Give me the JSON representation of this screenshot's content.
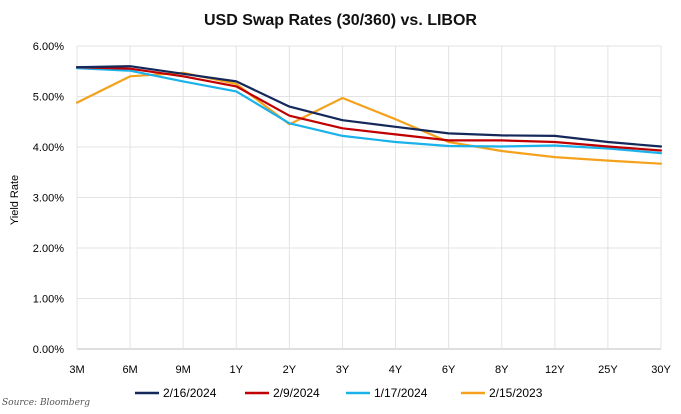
{
  "chart_data": {
    "type": "line",
    "title": "USD Swap Rates (30/360) vs. LIBOR",
    "xlabel": "",
    "ylabel": "Yield Rate",
    "categories": [
      "3M",
      "6M",
      "9M",
      "1Y",
      "2Y",
      "3Y",
      "4Y",
      "6Y",
      "8Y",
      "12Y",
      "25Y",
      "30Y"
    ],
    "y_ticks": [
      "0.00%",
      "1.00%",
      "2.00%",
      "3.00%",
      "4.00%",
      "5.00%",
      "6.00%"
    ],
    "ylim": [
      0,
      6
    ],
    "grid": "both",
    "legend_position": "bottom",
    "series": [
      {
        "name": "2/16/2024",
        "color": "#14285a",
        "values": [
          5.58,
          5.6,
          5.45,
          5.3,
          4.8,
          4.53,
          4.4,
          4.27,
          4.23,
          4.22,
          4.1,
          4.01
        ]
      },
      {
        "name": "2/9/2024",
        "color": "#c00000",
        "values": [
          5.58,
          5.55,
          5.4,
          5.2,
          4.62,
          4.37,
          4.25,
          4.13,
          4.13,
          4.1,
          4.01,
          3.93
        ]
      },
      {
        "name": "1/17/2024",
        "color": "#1ab2ea",
        "values": [
          5.56,
          5.51,
          5.3,
          5.1,
          4.47,
          4.22,
          4.1,
          4.02,
          4.01,
          4.03,
          3.97,
          3.88
        ]
      },
      {
        "name": "2/15/2023",
        "color": "#f4a11c",
        "values": [
          4.88,
          5.4,
          5.47,
          5.25,
          4.45,
          4.97,
          4.55,
          4.1,
          3.92,
          3.8,
          3.73,
          3.67
        ]
      }
    ]
  },
  "source": "Source: Bloomberg"
}
